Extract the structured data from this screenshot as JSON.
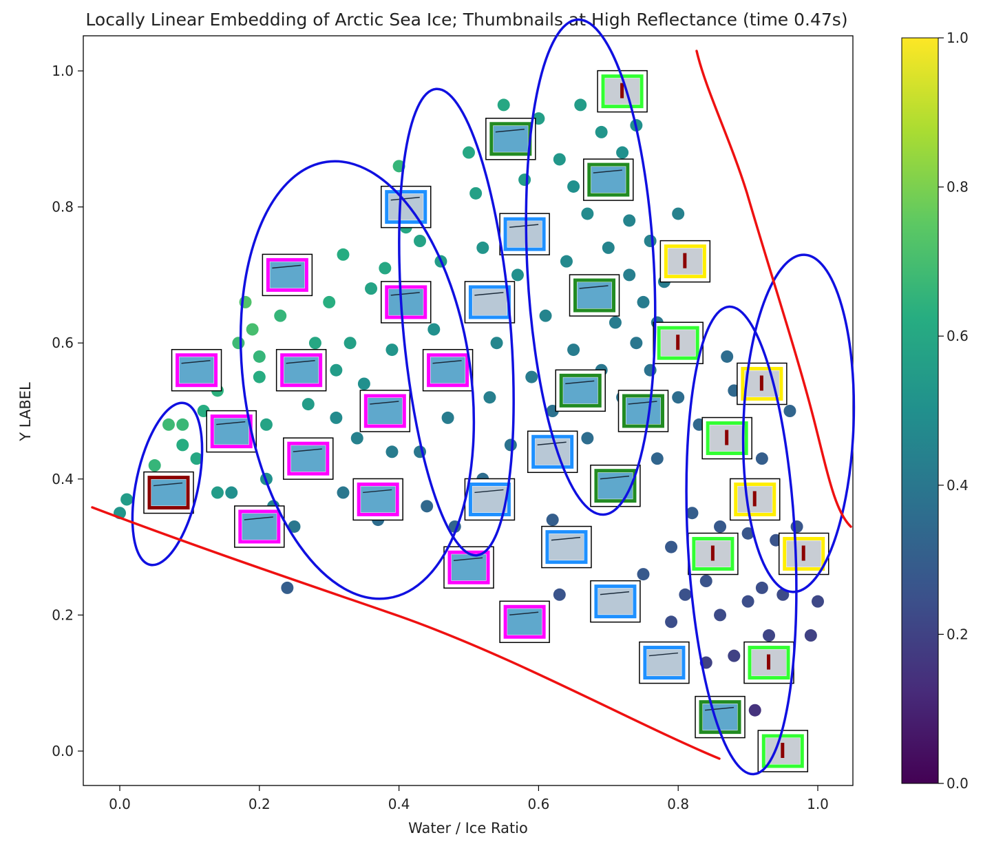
{
  "chart_data": {
    "type": "scatter",
    "title": "Locally Linear Embedding of Arctic Sea Ice; Thumbnails at High Reflectance (time 0.47s)",
    "xlabel": "Water / Ice Ratio",
    "ylabel": "Y LABEL",
    "xlim": [
      -0.05,
      1.05
    ],
    "ylim": [
      -0.05,
      1.05
    ],
    "xticks": [
      "0.0",
      "0.2",
      "0.4",
      "0.6",
      "0.8",
      "1.0"
    ],
    "yticks": [
      "0.0",
      "0.2",
      "0.4",
      "0.6",
      "0.8",
      "1.0"
    ],
    "colorbar": {
      "colormap": "viridis",
      "range": [
        0.0,
        1.0
      ],
      "ticks": [
        "0.0",
        "0.2",
        "0.4",
        "0.6",
        "0.8",
        "1.0"
      ]
    },
    "points": [
      {
        "x": 0.0,
        "y": 0.35,
        "c": 0.52
      },
      {
        "x": 0.01,
        "y": 0.37,
        "c": 0.55
      },
      {
        "x": 0.05,
        "y": 0.42,
        "c": 0.66
      },
      {
        "x": 0.07,
        "y": 0.48,
        "c": 0.68
      },
      {
        "x": 0.09,
        "y": 0.48,
        "c": 0.67
      },
      {
        "x": 0.09,
        "y": 0.45,
        "c": 0.62
      },
      {
        "x": 0.11,
        "y": 0.43,
        "c": 0.6
      },
      {
        "x": 0.12,
        "y": 0.5,
        "c": 0.62
      },
      {
        "x": 0.14,
        "y": 0.53,
        "c": 0.64
      },
      {
        "x": 0.14,
        "y": 0.38,
        "c": 0.55
      },
      {
        "x": 0.16,
        "y": 0.38,
        "c": 0.5
      },
      {
        "x": 0.17,
        "y": 0.6,
        "c": 0.68
      },
      {
        "x": 0.18,
        "y": 0.66,
        "c": 0.72
      },
      {
        "x": 0.19,
        "y": 0.62,
        "c": 0.7
      },
      {
        "x": 0.2,
        "y": 0.58,
        "c": 0.66
      },
      {
        "x": 0.2,
        "y": 0.55,
        "c": 0.62
      },
      {
        "x": 0.21,
        "y": 0.48,
        "c": 0.58
      },
      {
        "x": 0.21,
        "y": 0.4,
        "c": 0.5
      },
      {
        "x": 0.22,
        "y": 0.36,
        "c": 0.45
      },
      {
        "x": 0.23,
        "y": 0.64,
        "c": 0.66
      },
      {
        "x": 0.24,
        "y": 0.24,
        "c": 0.3
      },
      {
        "x": 0.25,
        "y": 0.33,
        "c": 0.4
      },
      {
        "x": 0.27,
        "y": 0.51,
        "c": 0.55
      },
      {
        "x": 0.28,
        "y": 0.6,
        "c": 0.6
      },
      {
        "x": 0.3,
        "y": 0.66,
        "c": 0.63
      },
      {
        "x": 0.31,
        "y": 0.56,
        "c": 0.55
      },
      {
        "x": 0.31,
        "y": 0.49,
        "c": 0.48
      },
      {
        "x": 0.32,
        "y": 0.38,
        "c": 0.4
      },
      {
        "x": 0.32,
        "y": 0.73,
        "c": 0.62
      },
      {
        "x": 0.33,
        "y": 0.6,
        "c": 0.57
      },
      {
        "x": 0.34,
        "y": 0.46,
        "c": 0.44
      },
      {
        "x": 0.35,
        "y": 0.54,
        "c": 0.5
      },
      {
        "x": 0.36,
        "y": 0.68,
        "c": 0.58
      },
      {
        "x": 0.37,
        "y": 0.34,
        "c": 0.36
      },
      {
        "x": 0.38,
        "y": 0.71,
        "c": 0.6
      },
      {
        "x": 0.39,
        "y": 0.59,
        "c": 0.52
      },
      {
        "x": 0.39,
        "y": 0.44,
        "c": 0.42
      },
      {
        "x": 0.4,
        "y": 0.86,
        "c": 0.66
      },
      {
        "x": 0.41,
        "y": 0.77,
        "c": 0.6
      },
      {
        "x": 0.43,
        "y": 0.75,
        "c": 0.58
      },
      {
        "x": 0.43,
        "y": 0.44,
        "c": 0.4
      },
      {
        "x": 0.44,
        "y": 0.36,
        "c": 0.34
      },
      {
        "x": 0.45,
        "y": 0.62,
        "c": 0.5
      },
      {
        "x": 0.46,
        "y": 0.72,
        "c": 0.55
      },
      {
        "x": 0.47,
        "y": 0.49,
        "c": 0.42
      },
      {
        "x": 0.48,
        "y": 0.33,
        "c": 0.33
      },
      {
        "x": 0.49,
        "y": 0.57,
        "c": 0.47
      },
      {
        "x": 0.5,
        "y": 0.88,
        "c": 0.6
      },
      {
        "x": 0.51,
        "y": 0.82,
        "c": 0.57
      },
      {
        "x": 0.52,
        "y": 0.74,
        "c": 0.52
      },
      {
        "x": 0.52,
        "y": 0.4,
        "c": 0.36
      },
      {
        "x": 0.53,
        "y": 0.52,
        "c": 0.43
      },
      {
        "x": 0.54,
        "y": 0.6,
        "c": 0.46
      },
      {
        "x": 0.55,
        "y": 0.95,
        "c": 0.6
      },
      {
        "x": 0.55,
        "y": 0.36,
        "c": 0.32
      },
      {
        "x": 0.56,
        "y": 0.45,
        "c": 0.38
      },
      {
        "x": 0.57,
        "y": 0.7,
        "c": 0.5
      },
      {
        "x": 0.58,
        "y": 0.84,
        "c": 0.55
      },
      {
        "x": 0.59,
        "y": 0.55,
        "c": 0.42
      },
      {
        "x": 0.6,
        "y": 0.78,
        "c": 0.5
      },
      {
        "x": 0.6,
        "y": 0.93,
        "c": 0.56
      },
      {
        "x": 0.61,
        "y": 0.64,
        "c": 0.45
      },
      {
        "x": 0.62,
        "y": 0.5,
        "c": 0.38
      },
      {
        "x": 0.62,
        "y": 0.34,
        "c": 0.3
      },
      {
        "x": 0.63,
        "y": 0.23,
        "c": 0.26
      },
      {
        "x": 0.63,
        "y": 0.87,
        "c": 0.53
      },
      {
        "x": 0.64,
        "y": 0.72,
        "c": 0.47
      },
      {
        "x": 0.65,
        "y": 0.59,
        "c": 0.42
      },
      {
        "x": 0.65,
        "y": 0.83,
        "c": 0.5
      },
      {
        "x": 0.66,
        "y": 0.95,
        "c": 0.55
      },
      {
        "x": 0.67,
        "y": 0.46,
        "c": 0.36
      },
      {
        "x": 0.67,
        "y": 0.79,
        "c": 0.48
      },
      {
        "x": 0.68,
        "y": 0.68,
        "c": 0.44
      },
      {
        "x": 0.69,
        "y": 0.91,
        "c": 0.52
      },
      {
        "x": 0.69,
        "y": 0.56,
        "c": 0.4
      },
      {
        "x": 0.7,
        "y": 0.74,
        "c": 0.45
      },
      {
        "x": 0.7,
        "y": 0.38,
        "c": 0.33
      },
      {
        "x": 0.71,
        "y": 0.83,
        "c": 0.48
      },
      {
        "x": 0.71,
        "y": 0.63,
        "c": 0.42
      },
      {
        "x": 0.72,
        "y": 0.88,
        "c": 0.5
      },
      {
        "x": 0.72,
        "y": 0.52,
        "c": 0.38
      },
      {
        "x": 0.73,
        "y": 0.7,
        "c": 0.43
      },
      {
        "x": 0.73,
        "y": 0.78,
        "c": 0.45
      },
      {
        "x": 0.74,
        "y": 0.6,
        "c": 0.4
      },
      {
        "x": 0.74,
        "y": 0.92,
        "c": 0.5
      },
      {
        "x": 0.75,
        "y": 0.66,
        "c": 0.42
      },
      {
        "x": 0.75,
        "y": 0.26,
        "c": 0.28
      },
      {
        "x": 0.76,
        "y": 0.75,
        "c": 0.44
      },
      {
        "x": 0.76,
        "y": 0.56,
        "c": 0.38
      },
      {
        "x": 0.77,
        "y": 0.63,
        "c": 0.4
      },
      {
        "x": 0.77,
        "y": 0.43,
        "c": 0.33
      },
      {
        "x": 0.78,
        "y": 0.69,
        "c": 0.42
      },
      {
        "x": 0.79,
        "y": 0.3,
        "c": 0.28
      },
      {
        "x": 0.79,
        "y": 0.19,
        "c": 0.24
      },
      {
        "x": 0.8,
        "y": 0.79,
        "c": 0.44
      },
      {
        "x": 0.8,
        "y": 0.52,
        "c": 0.36
      },
      {
        "x": 0.81,
        "y": 0.23,
        "c": 0.25
      },
      {
        "x": 0.82,
        "y": 0.6,
        "c": 0.38
      },
      {
        "x": 0.82,
        "y": 0.35,
        "c": 0.3
      },
      {
        "x": 0.83,
        "y": 0.48,
        "c": 0.34
      },
      {
        "x": 0.84,
        "y": 0.25,
        "c": 0.26
      },
      {
        "x": 0.84,
        "y": 0.13,
        "c": 0.2
      },
      {
        "x": 0.85,
        "y": 0.44,
        "c": 0.32
      },
      {
        "x": 0.86,
        "y": 0.33,
        "c": 0.28
      },
      {
        "x": 0.86,
        "y": 0.2,
        "c": 0.23
      },
      {
        "x": 0.87,
        "y": 0.58,
        "c": 0.36
      },
      {
        "x": 0.87,
        "y": 0.27,
        "c": 0.27
      },
      {
        "x": 0.88,
        "y": 0.14,
        "c": 0.2
      },
      {
        "x": 0.88,
        "y": 0.53,
        "c": 0.34
      },
      {
        "x": 0.89,
        "y": 0.39,
        "c": 0.3
      },
      {
        "x": 0.9,
        "y": 0.22,
        "c": 0.24
      },
      {
        "x": 0.9,
        "y": 0.32,
        "c": 0.27
      },
      {
        "x": 0.91,
        "y": 0.06,
        "c": 0.15
      },
      {
        "x": 0.92,
        "y": 0.43,
        "c": 0.3
      },
      {
        "x": 0.92,
        "y": 0.24,
        "c": 0.24
      },
      {
        "x": 0.93,
        "y": 0.17,
        "c": 0.21
      },
      {
        "x": 0.94,
        "y": 0.31,
        "c": 0.26
      },
      {
        "x": 0.95,
        "y": 0.23,
        "c": 0.23
      },
      {
        "x": 0.95,
        "y": 0.02,
        "c": 0.12
      },
      {
        "x": 0.96,
        "y": 0.5,
        "c": 0.33
      },
      {
        "x": 0.97,
        "y": 0.33,
        "c": 0.27
      },
      {
        "x": 0.99,
        "y": 0.17,
        "c": 0.2
      },
      {
        "x": 1.0,
        "y": 0.3,
        "c": 0.26
      },
      {
        "x": 1.0,
        "y": 0.22,
        "c": 0.22
      }
    ],
    "thumbnails": [
      {
        "x": 0.07,
        "y": 0.38,
        "frame": "#8b0000",
        "scene": "water"
      },
      {
        "x": 0.11,
        "y": 0.56,
        "frame": "#ff00ff",
        "scene": "water"
      },
      {
        "x": 0.16,
        "y": 0.47,
        "frame": "#ff00ff",
        "scene": "water"
      },
      {
        "x": 0.2,
        "y": 0.33,
        "frame": "#ff00ff",
        "scene": "water"
      },
      {
        "x": 0.24,
        "y": 0.7,
        "frame": "#ff00ff",
        "scene": "water"
      },
      {
        "x": 0.26,
        "y": 0.56,
        "frame": "#ff00ff",
        "scene": "water"
      },
      {
        "x": 0.27,
        "y": 0.43,
        "frame": "#ff00ff",
        "scene": "water"
      },
      {
        "x": 0.38,
        "y": 0.5,
        "frame": "#ff00ff",
        "scene": "water"
      },
      {
        "x": 0.37,
        "y": 0.37,
        "frame": "#ff00ff",
        "scene": "water"
      },
      {
        "x": 0.41,
        "y": 0.66,
        "frame": "#ff00ff",
        "scene": "water"
      },
      {
        "x": 0.41,
        "y": 0.8,
        "frame": "#1e90ff",
        "scene": "ice"
      },
      {
        "x": 0.47,
        "y": 0.56,
        "frame": "#ff00ff",
        "scene": "water"
      },
      {
        "x": 0.5,
        "y": 0.27,
        "frame": "#ff00ff",
        "scene": "water"
      },
      {
        "x": 0.53,
        "y": 0.66,
        "frame": "#1e90ff",
        "scene": "ice"
      },
      {
        "x": 0.53,
        "y": 0.37,
        "frame": "#1e90ff",
        "scene": "ice"
      },
      {
        "x": 0.56,
        "y": 0.9,
        "frame": "#228b22",
        "scene": "water"
      },
      {
        "x": 0.58,
        "y": 0.76,
        "frame": "#1e90ff",
        "scene": "ice"
      },
      {
        "x": 0.58,
        "y": 0.19,
        "frame": "#ff00ff",
        "scene": "water"
      },
      {
        "x": 0.62,
        "y": 0.44,
        "frame": "#1e90ff",
        "scene": "ice"
      },
      {
        "x": 0.64,
        "y": 0.3,
        "frame": "#1e90ff",
        "scene": "ice"
      },
      {
        "x": 0.66,
        "y": 0.53,
        "frame": "#228b22",
        "scene": "water"
      },
      {
        "x": 0.68,
        "y": 0.67,
        "frame": "#228b22",
        "scene": "water"
      },
      {
        "x": 0.7,
        "y": 0.84,
        "frame": "#228b22",
        "scene": "water"
      },
      {
        "x": 0.71,
        "y": 0.39,
        "frame": "#228b22",
        "scene": "water"
      },
      {
        "x": 0.71,
        "y": 0.22,
        "frame": "#1e90ff",
        "scene": "ice"
      },
      {
        "x": 0.72,
        "y": 0.97,
        "frame": "#32ff32",
        "scene": "figure"
      },
      {
        "x": 0.75,
        "y": 0.5,
        "frame": "#228b22",
        "scene": "water"
      },
      {
        "x": 0.78,
        "y": 0.13,
        "frame": "#1e90ff",
        "scene": "ice"
      },
      {
        "x": 0.81,
        "y": 0.72,
        "frame": "#ffee00",
        "scene": "figure"
      },
      {
        "x": 0.8,
        "y": 0.6,
        "frame": "#32ff32",
        "scene": "figure"
      },
      {
        "x": 0.85,
        "y": 0.29,
        "frame": "#32ff32",
        "scene": "figure"
      },
      {
        "x": 0.87,
        "y": 0.46,
        "frame": "#32ff32",
        "scene": "figure"
      },
      {
        "x": 0.86,
        "y": 0.05,
        "frame": "#228b22",
        "scene": "water"
      },
      {
        "x": 0.92,
        "y": 0.54,
        "frame": "#ffee00",
        "scene": "figure"
      },
      {
        "x": 0.91,
        "y": 0.37,
        "frame": "#ffee00",
        "scene": "figure"
      },
      {
        "x": 0.93,
        "y": 0.13,
        "frame": "#32ff32",
        "scene": "figure"
      },
      {
        "x": 0.98,
        "y": 0.29,
        "frame": "#ffee00",
        "scene": "figure"
      },
      {
        "x": 0.95,
        "y": 0.0,
        "frame": "#32ff32",
        "scene": "figure"
      }
    ]
  },
  "annotations": {
    "ellipse_color": "#1010e0",
    "line_color": "#ee1111"
  }
}
